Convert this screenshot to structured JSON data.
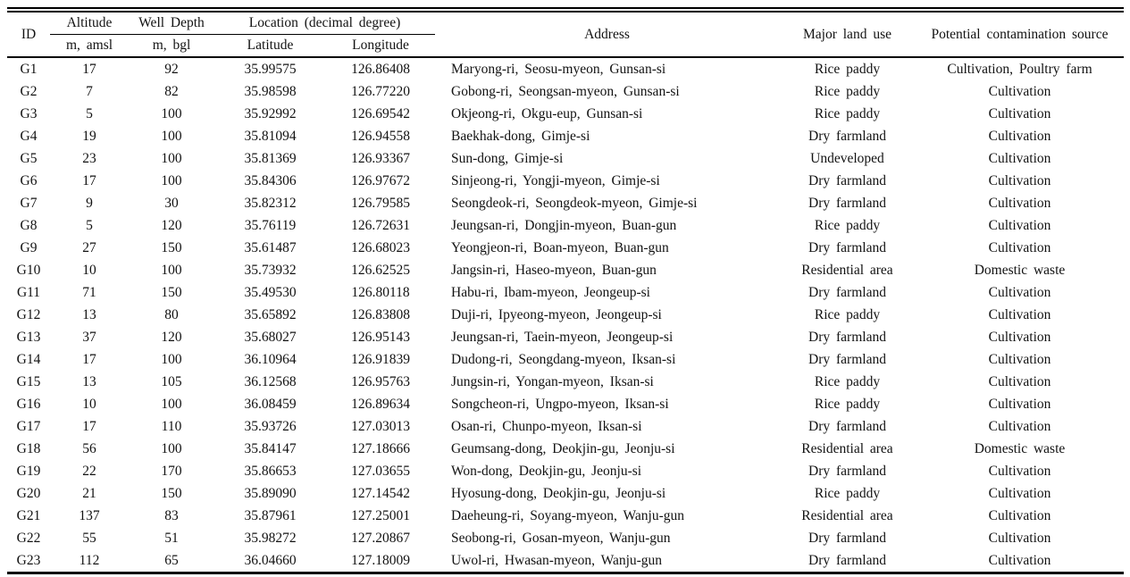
{
  "table": {
    "headers": {
      "id": "ID",
      "altitude": "Altitude",
      "altitude_unit": "m, amsl",
      "well_depth": "Well Depth",
      "well_depth_unit": "m, bgl",
      "location_group": "Location (decimal degree)",
      "latitude": "Latitude",
      "longitude": "Longitude",
      "address": "Address",
      "land_use": "Major land use",
      "contamination": "Potential contamination source"
    },
    "rows": [
      {
        "id": "G1",
        "altitude": "17",
        "well_depth": "92",
        "latitude": "35.99575",
        "longitude": "126.86408",
        "address": "Maryong-ri, Seosu-myeon, Gunsan-si",
        "land_use": "Rice paddy",
        "contamination": "Cultivation, Poultry farm"
      },
      {
        "id": "G2",
        "altitude": "7",
        "well_depth": "82",
        "latitude": "35.98598",
        "longitude": "126.77220",
        "address": "Gobong-ri, Seongsan-myeon, Gunsan-si",
        "land_use": "Rice paddy",
        "contamination": "Cultivation"
      },
      {
        "id": "G3",
        "altitude": "5",
        "well_depth": "100",
        "latitude": "35.92992",
        "longitude": "126.69542",
        "address": "Okjeong-ri, Okgu-eup, Gunsan-si",
        "land_use": "Rice paddy",
        "contamination": "Cultivation"
      },
      {
        "id": "G4",
        "altitude": "19",
        "well_depth": "100",
        "latitude": "35.81094",
        "longitude": "126.94558",
        "address": "Baekhak-dong, Gimje-si",
        "land_use": "Dry farmland",
        "contamination": "Cultivation"
      },
      {
        "id": "G5",
        "altitude": "23",
        "well_depth": "100",
        "latitude": "35.81369",
        "longitude": "126.93367",
        "address": "Sun-dong, Gimje-si",
        "land_use": "Undeveloped",
        "contamination": "Cultivation"
      },
      {
        "id": "G6",
        "altitude": "17",
        "well_depth": "100",
        "latitude": "35.84306",
        "longitude": "126.97672",
        "address": "Sinjeong-ri, Yongji-myeon, Gimje-si",
        "land_use": "Dry farmland",
        "contamination": "Cultivation"
      },
      {
        "id": "G7",
        "altitude": "9",
        "well_depth": "30",
        "latitude": "35.82312",
        "longitude": "126.79585",
        "address": "Seongdeok-ri, Seongdeok-myeon, Gimje-si",
        "land_use": "Dry farmland",
        "contamination": "Cultivation"
      },
      {
        "id": "G8",
        "altitude": "5",
        "well_depth": "120",
        "latitude": "35.76119",
        "longitude": "126.72631",
        "address": "Jeungsan-ri, Dongjin-myeon, Buan-gun",
        "land_use": "Rice paddy",
        "contamination": "Cultivation"
      },
      {
        "id": "G9",
        "altitude": "27",
        "well_depth": "150",
        "latitude": "35.61487",
        "longitude": "126.68023",
        "address": "Yeongjeon-ri, Boan-myeon, Buan-gun",
        "land_use": "Dry farmland",
        "contamination": "Cultivation"
      },
      {
        "id": "G10",
        "altitude": "10",
        "well_depth": "100",
        "latitude": "35.73932",
        "longitude": "126.62525",
        "address": "Jangsin-ri, Haseo-myeon, Buan-gun",
        "land_use": "Residential area",
        "contamination": "Domestic waste"
      },
      {
        "id": "G11",
        "altitude": "71",
        "well_depth": "150",
        "latitude": "35.49530",
        "longitude": "126.80118",
        "address": "Habu-ri, Ibam-myeon, Jeongeup-si",
        "land_use": "Dry farmland",
        "contamination": "Cultivation"
      },
      {
        "id": "G12",
        "altitude": "13",
        "well_depth": "80",
        "latitude": "35.65892",
        "longitude": "126.83808",
        "address": "Duji-ri, Ipyeong-myeon, Jeongeup-si",
        "land_use": "Rice paddy",
        "contamination": "Cultivation"
      },
      {
        "id": "G13",
        "altitude": "37",
        "well_depth": "120",
        "latitude": "35.68027",
        "longitude": "126.95143",
        "address": "Jeungsan-ri, Taein-myeon, Jeongeup-si",
        "land_use": "Dry farmland",
        "contamination": "Cultivation"
      },
      {
        "id": "G14",
        "altitude": "17",
        "well_depth": "100",
        "latitude": "36.10964",
        "longitude": "126.91839",
        "address": "Dudong-ri, Seongdang-myeon, Iksan-si",
        "land_use": "Dry farmland",
        "contamination": "Cultivation"
      },
      {
        "id": "G15",
        "altitude": "13",
        "well_depth": "105",
        "latitude": "36.12568",
        "longitude": "126.95763",
        "address": "Jungsin-ri, Yongan-myeon, Iksan-si",
        "land_use": "Rice paddy",
        "contamination": "Cultivation"
      },
      {
        "id": "G16",
        "altitude": "10",
        "well_depth": "100",
        "latitude": "36.08459",
        "longitude": "126.89634",
        "address": "Songcheon-ri, Ungpo-myeon, Iksan-si",
        "land_use": "Rice paddy",
        "contamination": "Cultivation"
      },
      {
        "id": "G17",
        "altitude": "17",
        "well_depth": "110",
        "latitude": "35.93726",
        "longitude": "127.03013",
        "address": "Osan-ri, Chunpo-myeon, Iksan-si",
        "land_use": "Dry farmland",
        "contamination": "Cultivation"
      },
      {
        "id": "G18",
        "altitude": "56",
        "well_depth": "100",
        "latitude": "35.84147",
        "longitude": "127.18666",
        "address": "Geumsang-dong, Deokjin-gu, Jeonju-si",
        "land_use": "Residential area",
        "contamination": "Domestic waste"
      },
      {
        "id": "G19",
        "altitude": "22",
        "well_depth": "170",
        "latitude": "35.86653",
        "longitude": "127.03655",
        "address": "Won-dong, Deokjin-gu, Jeonju-si",
        "land_use": "Dry farmland",
        "contamination": "Cultivation"
      },
      {
        "id": "G20",
        "altitude": "21",
        "well_depth": "150",
        "latitude": "35.89090",
        "longitude": "127.14542",
        "address": "Hyosung-dong, Deokjin-gu, Jeonju-si",
        "land_use": "Rice paddy",
        "contamination": "Cultivation"
      },
      {
        "id": "G21",
        "altitude": "137",
        "well_depth": "83",
        "latitude": "35.87961",
        "longitude": "127.25001",
        "address": "Daeheung-ri, Soyang-myeon, Wanju-gun",
        "land_use": "Residential area",
        "contamination": "Cultivation"
      },
      {
        "id": "G22",
        "altitude": "55",
        "well_depth": "51",
        "latitude": "35.98272",
        "longitude": "127.20867",
        "address": "Seobong-ri, Gosan-myeon, Wanju-gun",
        "land_use": "Dry farmland",
        "contamination": "Cultivation"
      },
      {
        "id": "G23",
        "altitude": "112",
        "well_depth": "65",
        "latitude": "36.04660",
        "longitude": "127.18009",
        "address": "Uwol-ri, Hwasan-myeon, Wanju-gun",
        "land_use": "Dry farmland",
        "contamination": "Cultivation"
      }
    ]
  }
}
